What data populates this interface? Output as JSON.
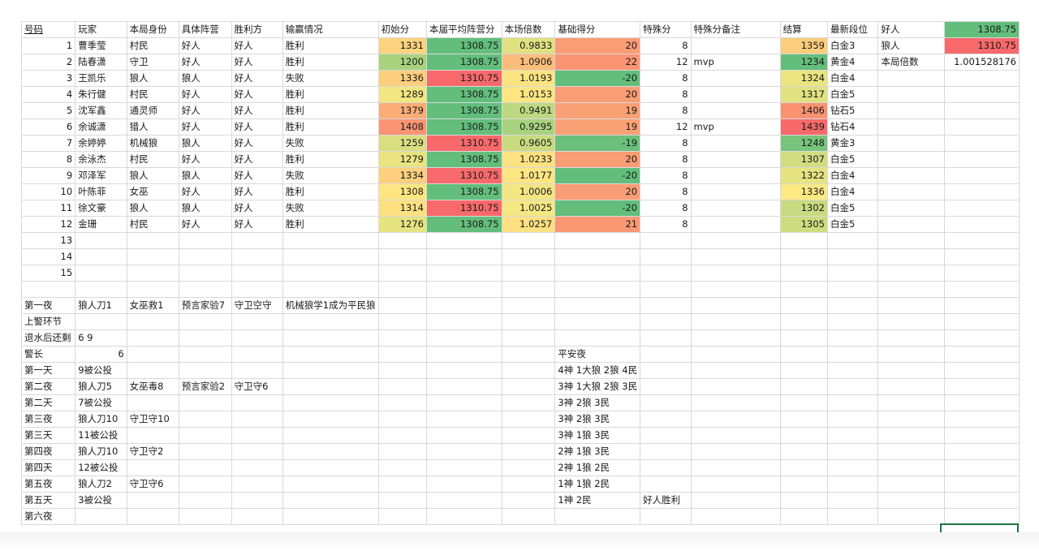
{
  "header": [
    "号码",
    "玩家",
    "本局身份",
    "具体阵营",
    "胜利方",
    "输赢情况",
    "初始分",
    "本届平均阵营分",
    "本场倍数",
    "基础得分",
    "特殊分",
    "特殊分备注",
    "结算",
    "最新段位",
    "好人",
    "1308.75"
  ],
  "side": {
    "wolf_label": "狼人",
    "wolf_value": "1310.75",
    "mult_label": "本局倍数",
    "mult_value": "1.001528176"
  },
  "players": [
    {
      "num": "1",
      "name": "曹季莹",
      "role": "村民",
      "camp": "好人",
      "winner": "好人",
      "result": "胜利",
      "init": "1331",
      "avg": "1308.75",
      "mult": "0.9833",
      "base": "20",
      "special": "8",
      "note": "",
      "settle": "1359",
      "rank": "白金3"
    },
    {
      "num": "2",
      "name": "陆春潇",
      "role": "守卫",
      "camp": "好人",
      "winner": "好人",
      "result": "胜利",
      "init": "1200",
      "avg": "1308.75",
      "mult": "1.0906",
      "base": "22",
      "special": "12",
      "note": "mvp",
      "settle": "1234",
      "rank": "黄金4"
    },
    {
      "num": "3",
      "name": "王凯乐",
      "role": "狼人",
      "camp": "狼人",
      "winner": "好人",
      "result": "失败",
      "init": "1336",
      "avg": "1310.75",
      "mult": "1.0193",
      "base": "-20",
      "special": "8",
      "note": "",
      "settle": "1324",
      "rank": "白金4"
    },
    {
      "num": "4",
      "name": "朱行健",
      "role": "村民",
      "camp": "好人",
      "winner": "好人",
      "result": "胜利",
      "init": "1289",
      "avg": "1308.75",
      "mult": "1.0153",
      "base": "20",
      "special": "8",
      "note": "",
      "settle": "1317",
      "rank": "白金5"
    },
    {
      "num": "5",
      "name": "沈军鑫",
      "role": "通灵师",
      "camp": "好人",
      "winner": "好人",
      "result": "胜利",
      "init": "1379",
      "avg": "1308.75",
      "mult": "0.9491",
      "base": "19",
      "special": "8",
      "note": "",
      "settle": "1406",
      "rank": "钻石5"
    },
    {
      "num": "6",
      "name": "余诚潇",
      "role": "猎人",
      "camp": "好人",
      "winner": "好人",
      "result": "胜利",
      "init": "1408",
      "avg": "1308.75",
      "mult": "0.9295",
      "base": "19",
      "special": "12",
      "note": "mvp",
      "settle": "1439",
      "rank": "钻石4"
    },
    {
      "num": "7",
      "name": "余婷婷",
      "role": "机械狼",
      "camp": "狼人",
      "winner": "好人",
      "result": "失败",
      "init": "1259",
      "avg": "1310.75",
      "mult": "0.9605",
      "base": "-19",
      "special": "8",
      "note": "",
      "settle": "1248",
      "rank": "黄金3"
    },
    {
      "num": "8",
      "name": "余泳杰",
      "role": "村民",
      "camp": "好人",
      "winner": "好人",
      "result": "胜利",
      "init": "1279",
      "avg": "1308.75",
      "mult": "1.0233",
      "base": "20",
      "special": "8",
      "note": "",
      "settle": "1307",
      "rank": "白金5"
    },
    {
      "num": "9",
      "name": "邓泽军",
      "role": "狼人",
      "camp": "狼人",
      "winner": "好人",
      "result": "失败",
      "init": "1334",
      "avg": "1310.75",
      "mult": "1.0177",
      "base": "-20",
      "special": "8",
      "note": "",
      "settle": "1322",
      "rank": "白金4"
    },
    {
      "num": "10",
      "name": "叶陈菲",
      "role": "女巫",
      "camp": "好人",
      "winner": "好人",
      "result": "胜利",
      "init": "1308",
      "avg": "1308.75",
      "mult": "1.0006",
      "base": "20",
      "special": "8",
      "note": "",
      "settle": "1336",
      "rank": "白金4"
    },
    {
      "num": "11",
      "name": "徐文豪",
      "role": "狼人",
      "camp": "狼人",
      "winner": "好人",
      "result": "失败",
      "init": "1314",
      "avg": "1310.75",
      "mult": "1.0025",
      "base": "-20",
      "special": "8",
      "note": "",
      "settle": "1302",
      "rank": "白金5"
    },
    {
      "num": "12",
      "name": "金珊",
      "role": "村民",
      "camp": "好人",
      "winner": "好人",
      "result": "胜利",
      "init": "1276",
      "avg": "1308.75",
      "mult": "1.0257",
      "base": "21",
      "special": "8",
      "note": "",
      "settle": "1305",
      "rank": "白金5"
    }
  ],
  "empty_nums": [
    "13",
    "14",
    "15"
  ],
  "log": [
    {
      "label": "第一夜",
      "c1": "狼人刀1",
      "c2": "女巫救1",
      "c3": "预言家验7",
      "c4": "守卫空守",
      "c5": "机械狼学1成为平民狼",
      "state": "",
      "extra": ""
    },
    {
      "label": "上警环节",
      "c1": "",
      "c2": "",
      "c3": "",
      "c4": "",
      "c5": "",
      "state": "",
      "extra": ""
    },
    {
      "label": "退水后还剩",
      "c1": "6 9",
      "c2": "",
      "c3": "",
      "c4": "",
      "c5": "",
      "state": "",
      "extra": ""
    },
    {
      "label": "警长",
      "c1": "6",
      "c2": "",
      "c3": "",
      "c4": "",
      "c5": "",
      "state": "平安夜",
      "extra": ""
    },
    {
      "label": "第一天",
      "c1": "9被公投",
      "c2": "",
      "c3": "",
      "c4": "",
      "c5": "",
      "state": "4神 1大狼 2狼 4民",
      "extra": ""
    },
    {
      "label": "第二夜",
      "c1": "狼人刀5",
      "c2": "女巫毒8",
      "c3": "预言家验2",
      "c4": "守卫守6",
      "c5": "",
      "state": "3神 1大狼 2狼 3民",
      "extra": ""
    },
    {
      "label": "第二天",
      "c1": "7被公投",
      "c2": "",
      "c3": "",
      "c4": "",
      "c5": "",
      "state": "3神 2狼 3民",
      "extra": ""
    },
    {
      "label": "第三夜",
      "c1": "狼人刀10",
      "c2": "守卫守10",
      "c3": "",
      "c4": "",
      "c5": "",
      "state": "3神 2狼 3民",
      "extra": ""
    },
    {
      "label": "第三天",
      "c1": "11被公投",
      "c2": "",
      "c3": "",
      "c4": "",
      "c5": "",
      "state": "3神 1狼 3民",
      "extra": ""
    },
    {
      "label": "第四夜",
      "c1": "狼人刀10",
      "c2": "守卫守2",
      "c3": "",
      "c4": "",
      "c5": "",
      "state": "2神 1狼 3民",
      "extra": ""
    },
    {
      "label": "第四天",
      "c1": "12被公投",
      "c2": "",
      "c3": "",
      "c4": "",
      "c5": "",
      "state": "2神 1狼 2民",
      "extra": ""
    },
    {
      "label": "第五夜",
      "c1": "狼人刀2",
      "c2": "守卫守6",
      "c3": "",
      "c4": "",
      "c5": "",
      "state": "1神 1狼 2民",
      "extra": ""
    },
    {
      "label": "第五天",
      "c1": "3被公投",
      "c2": "",
      "c3": "",
      "c4": "",
      "c5": "",
      "state": "1神 2民",
      "extra": "好人胜利"
    },
    {
      "label": "第六夜",
      "c1": "",
      "c2": "",
      "c3": "",
      "c4": "",
      "c5": "",
      "state": "",
      "extra": ""
    }
  ],
  "colors": {
    "green": "#63be7b",
    "light_green": "#a9d27f",
    "yellow_green": "#cfe07f",
    "yellow": "#fde982",
    "orange": "#fcbd7b",
    "salmon": "#fa9473",
    "red": "#f8696b",
    "accent": "#217346"
  }
}
